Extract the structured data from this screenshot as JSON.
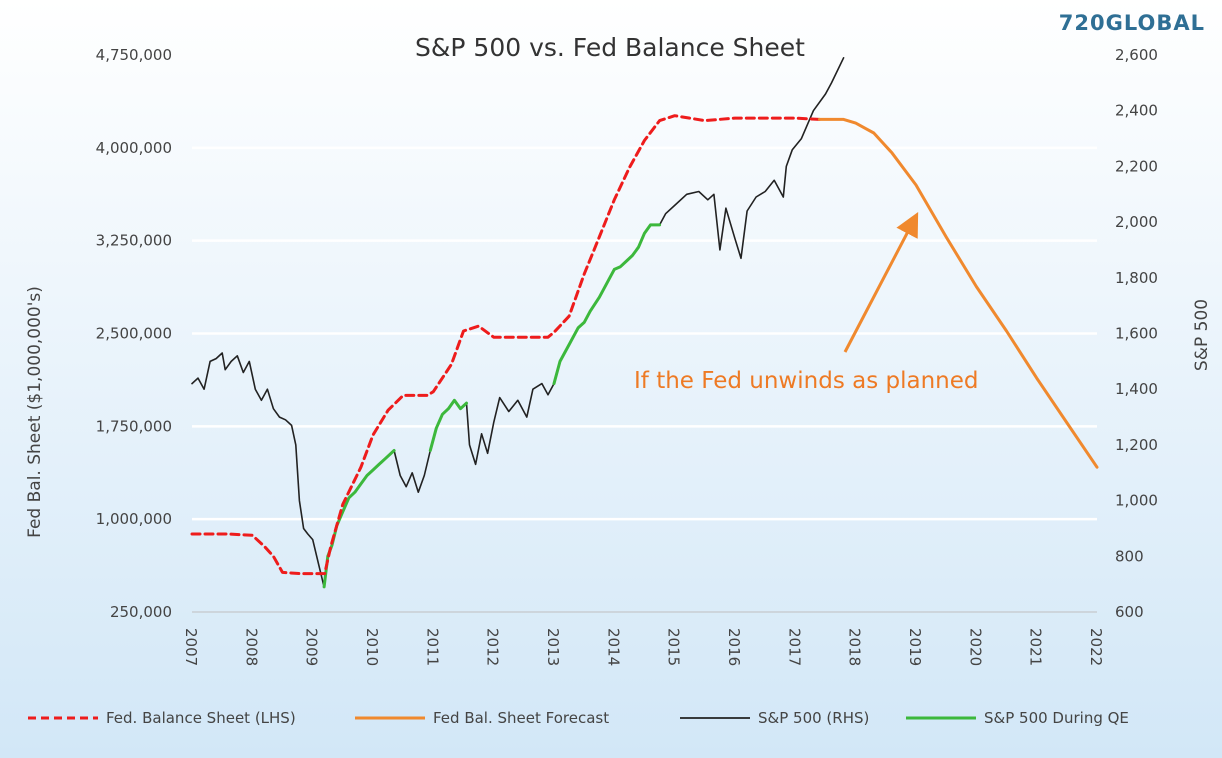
{
  "brand": {
    "text": "720GLOBAL",
    "color": "#2f6f95"
  },
  "colors": {
    "fed": "#ee1c1c",
    "forecast": "#f0892e",
    "sp": "#222222",
    "qe": "#3cb83c",
    "annotation": "#ee7a24",
    "bg_top": "#ffffff",
    "bg_bottom": "#d2e7f7",
    "grid": "#ffffff"
  },
  "chart_data": {
    "type": "line",
    "title": "S&P 500 vs. Fed Balance Sheet",
    "ylabel_left": "Fed Bal. Sheet  ($1,000,000's)",
    "ylabel_right": "S&P 500",
    "x_range": [
      2007,
      2022
    ],
    "x_ticks": [
      "2007",
      "2008",
      "2009",
      "2010",
      "2011",
      "2012",
      "2013",
      "2014",
      "2015",
      "2016",
      "2017",
      "2018",
      "2019",
      "2020",
      "2021",
      "2022"
    ],
    "ylim_left": [
      250000,
      4750000
    ],
    "y_ticks_left": [
      "4,750,000",
      "4,000,000",
      "3,250,000",
      "2,500,000",
      "1,750,000",
      "1,000,000",
      "250,000"
    ],
    "ylim_right": [
      600,
      2600
    ],
    "y_ticks_right": [
      "2,600",
      "2,400",
      "2,200",
      "2,000",
      "1,800",
      "1,600",
      "1,400",
      "1,200",
      "1,000",
      "800",
      "600"
    ],
    "grid": true,
    "legend_position": "bottom",
    "series": [
      {
        "name": "Fed. Balance Sheet (LHS)",
        "axis": "left",
        "style": "dashed",
        "x": [
          2007.0,
          2007.6,
          2008.0,
          2008.2,
          2008.35,
          2008.5,
          2008.8,
          2009.0,
          2009.2,
          2009.3,
          2009.5,
          2009.8,
          2010.0,
          2010.25,
          2010.5,
          2010.9,
          2011.0,
          2011.3,
          2011.5,
          2011.75,
          2012.0,
          2012.5,
          2012.9,
          2013.0,
          2013.25,
          2013.5,
          2013.75,
          2014.0,
          2014.25,
          2014.5,
          2014.75,
          2015.0,
          2015.5,
          2016.0,
          2016.5,
          2017.0,
          2017.4
        ],
        "values": [
          880000,
          880000,
          870000,
          780000,
          700000,
          570000,
          560000,
          560000,
          560000,
          780000,
          1120000,
          1420000,
          1680000,
          1880000,
          2000000,
          2000000,
          2030000,
          2250000,
          2520000,
          2560000,
          2470000,
          2470000,
          2470000,
          2510000,
          2640000,
          2980000,
          3280000,
          3580000,
          3840000,
          4060000,
          4220000,
          4260000,
          4220000,
          4240000,
          4240000,
          4240000,
          4230000
        ]
      },
      {
        "name": "Fed Bal. Sheet Forecast",
        "axis": "left",
        "style": "solid",
        "x": [
          2017.4,
          2017.8,
          2018.0,
          2018.3,
          2018.6,
          2019.0,
          2019.5,
          2020.0,
          2020.5,
          2021.0,
          2021.5,
          2022.0
        ],
        "values": [
          4230000,
          4230000,
          4200000,
          4120000,
          3960000,
          3700000,
          3280000,
          2880000,
          2520000,
          2140000,
          1780000,
          1420000
        ]
      },
      {
        "name": "S&P 500 (RHS)",
        "axis": "right",
        "style": "solid",
        "segments": [
          {
            "x": [
              2007.0,
              2007.1,
              2007.2,
              2007.3,
              2007.4,
              2007.5,
              2007.55,
              2007.65,
              2007.75,
              2007.85,
              2007.95,
              2008.05,
              2008.15,
              2008.25,
              2008.35,
              2008.45,
              2008.55,
              2008.65,
              2008.72,
              2008.78,
              2008.85,
              2008.92,
              2009.0,
              2009.1,
              2009.19
            ],
            "values": [
              1420,
              1440,
              1400,
              1500,
              1510,
              1530,
              1470,
              1500,
              1520,
              1460,
              1500,
              1400,
              1360,
              1400,
              1330,
              1300,
              1290,
              1270,
              1200,
              1000,
              900,
              880,
              860,
              770,
              690
            ]
          },
          {
            "x": [
              2010.35,
              2010.45,
              2010.55,
              2010.65,
              2010.75,
              2010.85,
              2010.95
            ],
            "values": [
              1180,
              1090,
              1050,
              1100,
              1030,
              1090,
              1180
            ]
          },
          {
            "x": [
              2011.55,
              2011.6,
              2011.7,
              2011.8,
              2011.9,
              2012.0,
              2012.1,
              2012.25,
              2012.4,
              2012.55,
              2012.65,
              2012.8,
              2012.9,
              2013.0
            ],
            "values": [
              1350,
              1200,
              1130,
              1240,
              1170,
              1280,
              1370,
              1320,
              1360,
              1300,
              1400,
              1420,
              1380,
              1420
            ]
          },
          {
            "x": [
              2014.75,
              2014.85,
              2015.0,
              2015.2,
              2015.4,
              2015.55,
              2015.65,
              2015.75,
              2015.85,
              2016.0,
              2016.1,
              2016.2,
              2016.35,
              2016.5,
              2016.65,
              2016.8,
              2016.85,
              2016.95,
              2017.1,
              2017.3,
              2017.5,
              2017.6,
              2017.8
            ],
            "values": [
              1990,
              2030,
              2060,
              2100,
              2110,
              2080,
              2100,
              1900,
              2050,
              1940,
              1870,
              2040,
              2090,
              2110,
              2150,
              2090,
              2200,
              2260,
              2300,
              2400,
              2460,
              2500,
              2590
            ]
          }
        ]
      },
      {
        "name": "S&P 500 During QE",
        "axis": "right",
        "style": "solid",
        "segments": [
          {
            "x": [
              2009.19,
              2009.25,
              2009.32,
              2009.4,
              2009.5,
              2009.6,
              2009.7,
              2009.8,
              2009.9,
              2010.0,
              2010.1,
              2010.2,
              2010.35
            ],
            "values": [
              690,
              800,
              840,
              910,
              960,
              1010,
              1030,
              1060,
              1090,
              1110,
              1130,
              1150,
              1180
            ]
          },
          {
            "x": [
              2010.95,
              2011.05,
              2011.15,
              2011.25,
              2011.35,
              2011.45,
              2011.55
            ],
            "values": [
              1180,
              1260,
              1310,
              1330,
              1360,
              1330,
              1350
            ]
          },
          {
            "x": [
              2013.0,
              2013.1,
              2013.25,
              2013.4,
              2013.5,
              2013.6,
              2013.75,
              2013.9,
              2014.0,
              2014.1,
              2014.2,
              2014.3,
              2014.4,
              2014.5,
              2014.6,
              2014.75
            ],
            "values": [
              1420,
              1500,
              1560,
              1620,
              1640,
              1680,
              1730,
              1790,
              1830,
              1840,
              1860,
              1880,
              1910,
              1960,
              1990,
              1990
            ]
          }
        ]
      }
    ],
    "annotations": [
      {
        "text": "If the Fed unwinds as planned"
      }
    ]
  }
}
